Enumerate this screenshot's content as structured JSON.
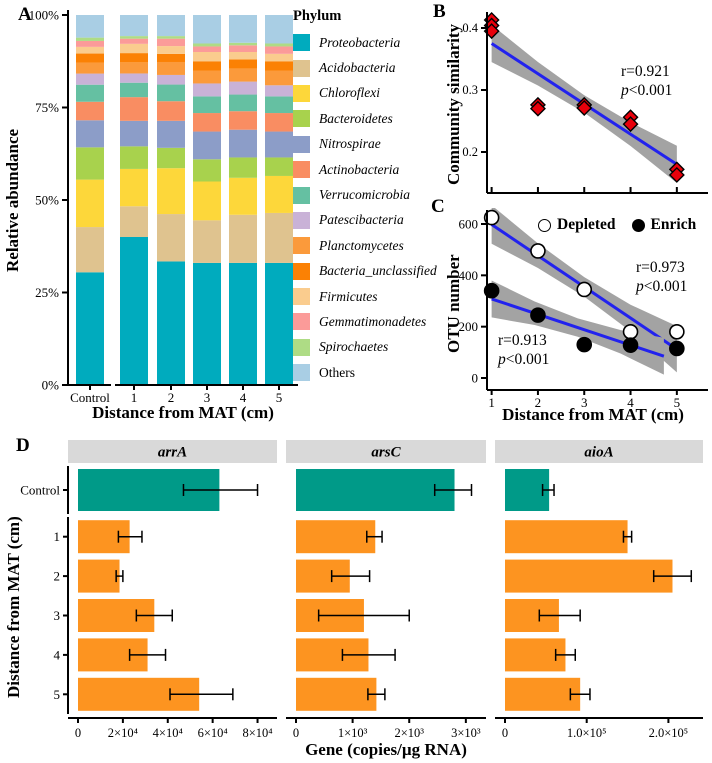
{
  "colors": {
    "point_red": "#E8000B",
    "fit_blue": "#2222EE",
    "ci_gray": "#A3A3A3",
    "control_teal": "#009A88",
    "treatment_orange": "#FD9420",
    "facet_header_gray": "#D9D9D9",
    "axis_black": "#000000"
  },
  "panels": {
    "A": {
      "letter": "A",
      "ylabel": "Relative abundance",
      "xlabel": "Distance from MAT (cm)",
      "legend_title": "Phylum"
    },
    "B": {
      "letter": "B",
      "ylabel": "Community similarity",
      "stats": {
        "r": "r=0.921",
        "p_italic": "p",
        "p_rest": "<0.001"
      }
    },
    "C": {
      "letter": "C",
      "ylabel": "OTU number",
      "xlabel": "Distance from MAT (cm)",
      "legend": {
        "depleted": "Depleted",
        "enrich": "Enrich"
      },
      "stats_depleted": {
        "r": "r=0.973",
        "p_italic": "p",
        "p_rest": "<0.001"
      },
      "stats_enrich": {
        "r": "r=0.913",
        "p_italic": "p",
        "p_rest": "<0.001"
      }
    },
    "D": {
      "letter": "D",
      "ylabel": "Distance from MAT (cm)",
      "xlabel": "Gene (copies/µg RNA)"
    }
  },
  "chart_data": [
    {
      "id": "A",
      "type": "bar",
      "subtype": "stacked-percent",
      "categories": [
        "Control",
        "1",
        "2",
        "3",
        "4",
        "5"
      ],
      "ylabel": "Relative abundance",
      "xlabel": "Distance from MAT (cm)",
      "yticks": [
        {
          "v": 0,
          "label": "0%"
        },
        {
          "v": 25,
          "label": "25%"
        },
        {
          "v": 50,
          "label": "50%"
        },
        {
          "v": 75,
          "label": "75%"
        },
        {
          "v": 100,
          "label": "100%"
        }
      ],
      "legend_title": "Phylum",
      "series": [
        {
          "name": "Proteobacteria",
          "color": "#00ABBE",
          "values": [
            30.4,
            40.0,
            33.4,
            33.0,
            33.0,
            33.0
          ]
        },
        {
          "name": "Acidobacteria",
          "color": "#DFC38F",
          "values": [
            12.2,
            8.3,
            12.8,
            11.5,
            13.0,
            13.5
          ]
        },
        {
          "name": "Chloroflexi",
          "color": "#FDD73A",
          "values": [
            12.8,
            10.1,
            12.4,
            10.5,
            10.0,
            10.0
          ]
        },
        {
          "name": "Bacteroidetes",
          "color": "#A8D24D",
          "values": [
            8.7,
            6.1,
            5.5,
            6.0,
            5.5,
            5.0
          ]
        },
        {
          "name": "Nitrospirae",
          "color": "#8C9DC8",
          "values": [
            7.3,
            6.9,
            7.3,
            7.5,
            7.5,
            7.0
          ]
        },
        {
          "name": "Actinobacteria",
          "color": "#F98D62",
          "values": [
            5.0,
            6.4,
            5.3,
            5.0,
            5.0,
            5.0
          ]
        },
        {
          "name": "Verrucomicrobia",
          "color": "#65C0A2",
          "values": [
            4.6,
            3.9,
            4.5,
            4.5,
            4.5,
            4.5
          ]
        },
        {
          "name": "Patescibacteria",
          "color": "#C9B2D7",
          "values": [
            3.0,
            2.5,
            2.6,
            3.5,
            3.5,
            3.0
          ]
        },
        {
          "name": "Planctomycetes",
          "color": "#FB9A3B",
          "values": [
            2.9,
            3.0,
            3.5,
            3.5,
            3.5,
            4.0
          ]
        },
        {
          "name": "Bacteria_unclassified",
          "color": "#FB8104",
          "values": [
            2.5,
            2.5,
            2.2,
            2.5,
            2.5,
            2.5
          ]
        },
        {
          "name": "Firmicutes",
          "color": "#FACC8E",
          "values": [
            1.8,
            2.5,
            2.1,
            2.5,
            2.0,
            2.0
          ]
        },
        {
          "name": "Gemmatimonadetes",
          "color": "#FB9B99",
          "values": [
            1.6,
            1.4,
            2.0,
            1.5,
            1.8,
            2.0
          ]
        },
        {
          "name": "Spirochaetes",
          "color": "#AEDC85",
          "values": [
            0.9,
            0.7,
            0.7,
            0.8,
            0.7,
            0.8
          ]
        },
        {
          "name": "Others",
          "color": "#A9CEE4",
          "values": [
            6.1,
            5.7,
            5.7,
            7.7,
            7.5,
            7.7
          ]
        }
      ]
    },
    {
      "id": "B",
      "type": "scatter",
      "ylabel": "Community similarity",
      "marker": "diamond",
      "points": [
        {
          "x": 1,
          "y": 0.413
        },
        {
          "x": 1,
          "y": 0.404
        },
        {
          "x": 1,
          "y": 0.395
        },
        {
          "x": 2,
          "y": 0.276
        },
        {
          "x": 2,
          "y": 0.27
        },
        {
          "x": 3,
          "y": 0.276
        },
        {
          "x": 3,
          "y": 0.271
        },
        {
          "x": 4,
          "y": 0.256
        },
        {
          "x": 4,
          "y": 0.245
        },
        {
          "x": 5,
          "y": 0.172
        },
        {
          "x": 5,
          "y": 0.163
        }
      ],
      "fit_line": {
        "x1": 1,
        "y1": 0.375,
        "x2": 5,
        "y2": 0.18
      },
      "ci_xs": [
        1,
        2,
        3,
        4,
        5
      ],
      "ci_offsets": [
        0.03,
        0.019,
        0.014,
        0.019,
        0.03
      ],
      "annotation": {
        "r": "r=0.921",
        "p": "p<0.001"
      },
      "yticks": [
        {
          "v": 0.2,
          "label": "0.2"
        },
        {
          "v": 0.3,
          "label": "0.3"
        },
        {
          "v": 0.4,
          "label": "0.4"
        }
      ],
      "xticks": [
        1,
        2,
        3,
        4,
        5
      ],
      "xlim": [
        0.9,
        5.5
      ],
      "ylim": [
        0.134,
        0.429
      ]
    },
    {
      "id": "C",
      "type": "scatter",
      "ylabel": "OTU number",
      "xlabel": "Distance from MAT (cm)",
      "series": [
        {
          "name": "Depleted",
          "marker": "open-circle",
          "points": [
            [
              1,
              625
            ],
            [
              2,
              495
            ],
            [
              3,
              345
            ],
            [
              4,
              180
            ],
            [
              5,
              180
            ]
          ],
          "fit_line": {
            "x1": 1,
            "y1": 598,
            "x2": 5,
            "y2": 112
          },
          "ci_xs": [
            1,
            2,
            3,
            4,
            5
          ],
          "ci_offsets": [
            75,
            48,
            38,
            52,
            90
          ],
          "annotation": {
            "r": "r=0.973",
            "p": "p<0.001"
          }
        },
        {
          "name": "Enrich",
          "marker": "filled-circle",
          "points": [
            [
              1,
              340
            ],
            [
              2,
              245
            ],
            [
              3,
              130
            ],
            [
              4,
              128
            ],
            [
              5,
              115
            ]
          ],
          "fit_line": {
            "x1": 1,
            "y1": 308,
            "x2": 4.72,
            "y2": 85
          },
          "ci_xs": [
            1,
            1.93,
            2.86,
            3.79,
            4.72
          ],
          "ci_offsets": [
            72,
            46,
            36,
            46,
            72
          ],
          "annotation": {
            "r": "r=0.913",
            "p": "p<0.001"
          }
        }
      ],
      "yticks": [
        {
          "v": 0,
          "label": "0"
        },
        {
          "v": 200,
          "label": "200"
        },
        {
          "v": 400,
          "label": "400"
        },
        {
          "v": 600,
          "label": "600"
        }
      ],
      "xticks": [
        {
          "v": 1,
          "label": "1"
        },
        {
          "v": 2,
          "label": "2"
        },
        {
          "v": 3,
          "label": "3"
        },
        {
          "v": 4,
          "label": "4"
        },
        {
          "v": 5,
          "label": "5"
        }
      ],
      "ylim": [
        -40,
        662
      ]
    },
    {
      "id": "D",
      "type": "bar",
      "orientation": "horizontal",
      "xlabel": "Gene (copies/µg RNA)",
      "ylabel": "Distance from MAT (cm)",
      "categories": [
        "Control",
        "1",
        "2",
        "3",
        "4",
        "5"
      ],
      "facets": [
        {
          "gene": "arrA",
          "xmax": 86000,
          "ticks": [
            {
              "v": 0,
              "label": "0"
            },
            {
              "v": 20000,
              "label": "2×10⁴"
            },
            {
              "v": 40000,
              "label": "4×10⁴"
            },
            {
              "v": 60000,
              "label": "6×10⁴"
            },
            {
              "v": 80000,
              "label": "8×10⁴"
            }
          ],
          "values": [
            63000,
            23000,
            18500,
            34000,
            31000,
            54000
          ],
          "err_lo": [
            47000,
            18000,
            17000,
            26000,
            23000,
            41000
          ],
          "err_hi": [
            80000,
            28500,
            20000,
            42000,
            39000,
            69000
          ]
        },
        {
          "gene": "arsC",
          "xmax": 3250,
          "ticks": [
            {
              "v": 0,
              "label": "0"
            },
            {
              "v": 1000,
              "label": "1×10³"
            },
            {
              "v": 2000,
              "label": "2×10³"
            },
            {
              "v": 3000,
              "label": "3×10³"
            }
          ],
          "values": [
            2800,
            1400,
            950,
            1200,
            1280,
            1420
          ],
          "err_lo": [
            2450,
            1250,
            630,
            400,
            820,
            1270
          ],
          "err_hi": [
            3100,
            1520,
            1300,
            2000,
            1750,
            1570
          ]
        },
        {
          "gene": "aioA",
          "xmax": 235000,
          "ticks": [
            {
              "v": 0,
              "label": "0"
            },
            {
              "v": 100000,
              "label": "1.0×10⁵"
            },
            {
              "v": 200000,
              "label": "2.0×10⁵"
            }
          ],
          "values": [
            54000,
            150000,
            205000,
            66000,
            74000,
            92000
          ],
          "err_lo": [
            46000,
            145000,
            182000,
            42000,
            62000,
            80000
          ],
          "err_hi": [
            60000,
            155000,
            228000,
            92000,
            86000,
            104000
          ]
        }
      ]
    }
  ]
}
